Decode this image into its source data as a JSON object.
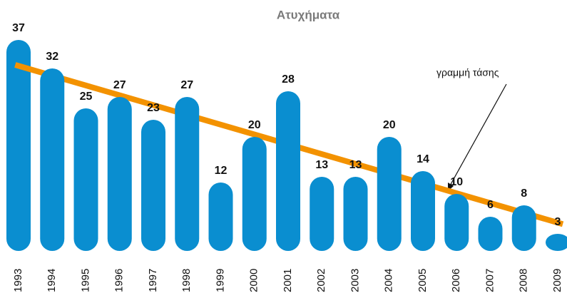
{
  "chart_data": {
    "type": "bar",
    "title": "Ατυχήματα",
    "categories": [
      "1993",
      "1994",
      "1995",
      "1996",
      "1997",
      "1998",
      "1999",
      "2000",
      "2001",
      "2002",
      "2003",
      "2004",
      "2005",
      "2006",
      "2007",
      "2008",
      "2009"
    ],
    "values": [
      37,
      32,
      25,
      27,
      23,
      27,
      12,
      20,
      28,
      13,
      13,
      20,
      14,
      10,
      6,
      8,
      3
    ],
    "color": "#0a8ed0",
    "trend_color": "#f39200",
    "annotation": "γραμμή τάσης"
  }
}
